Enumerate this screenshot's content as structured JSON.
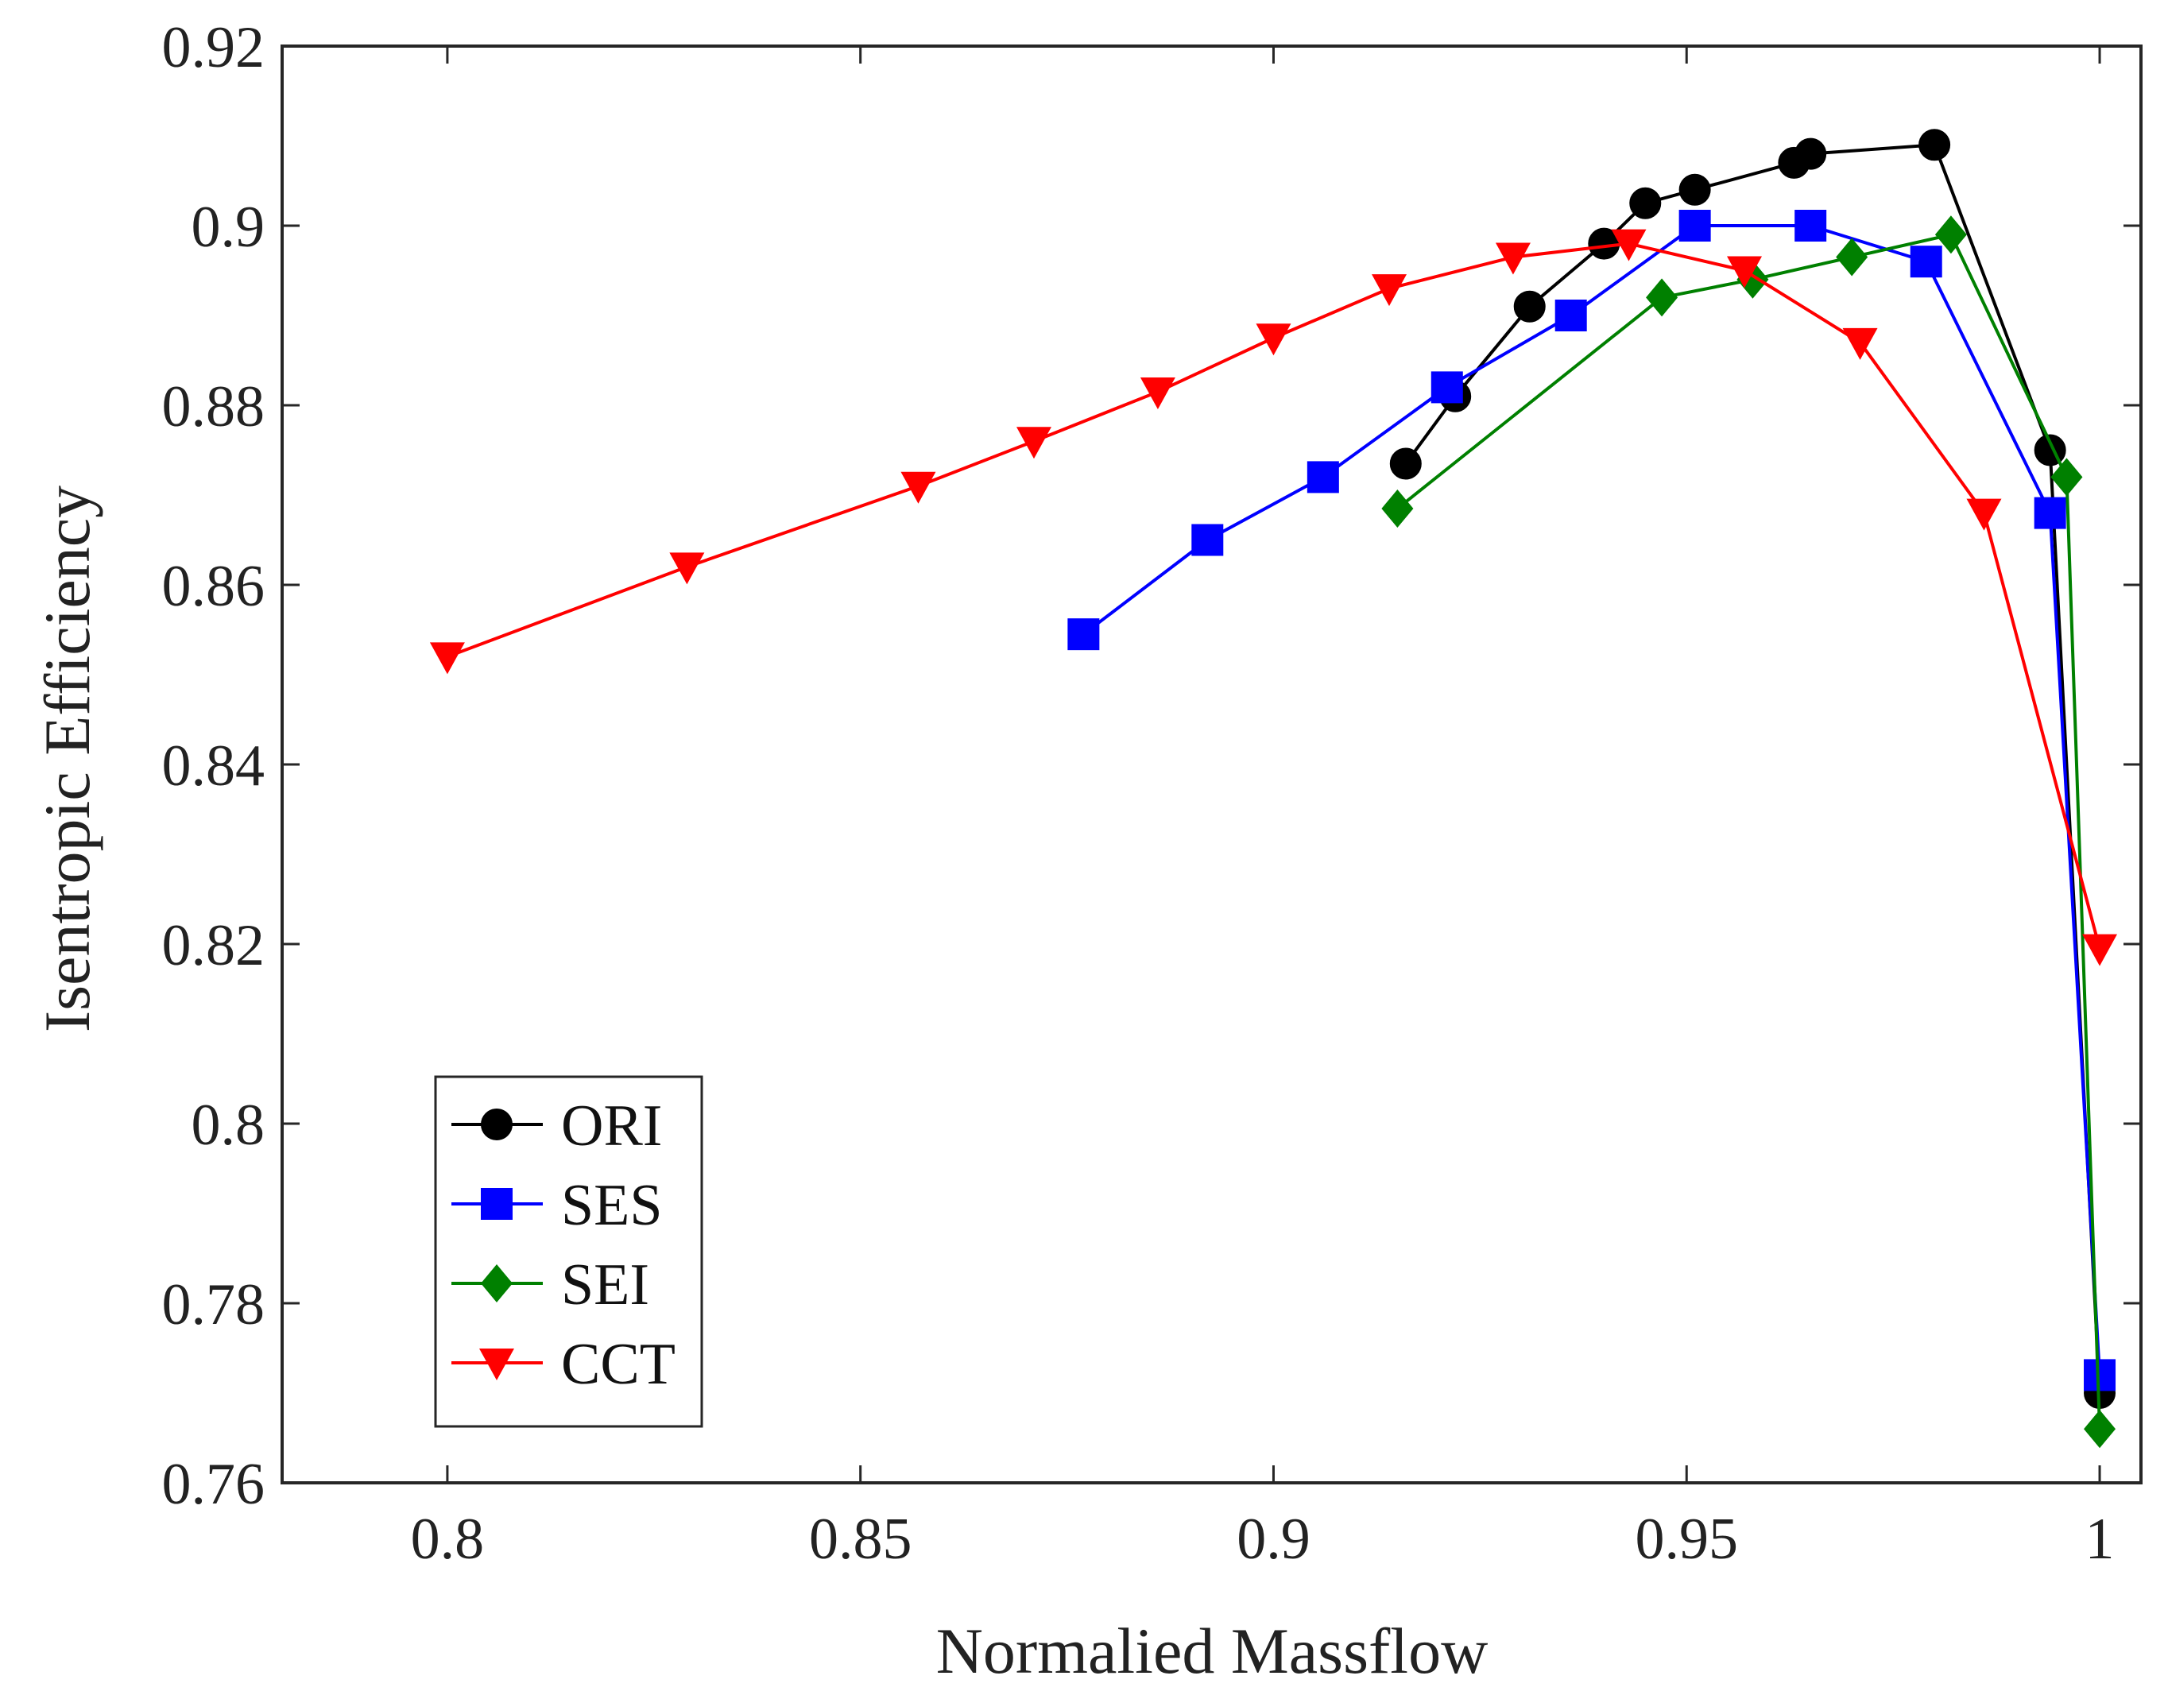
{
  "chart_data": {
    "type": "line",
    "title": "",
    "xlabel": "Normalied Massflow",
    "ylabel": "Isentropic Efficiency",
    "xlim": [
      0.78,
      1.005
    ],
    "ylim": [
      0.76,
      0.92
    ],
    "xticks": [
      0.8,
      0.85,
      0.9,
      0.95,
      1.0
    ],
    "xtick_labels": [
      "0.8",
      "0.85",
      "0.9",
      "0.95",
      "1"
    ],
    "yticks": [
      0.76,
      0.78,
      0.8,
      0.82,
      0.84,
      0.86,
      0.88,
      0.9,
      0.92
    ],
    "ytick_labels": [
      "0.76",
      "0.78",
      "0.8",
      "0.82",
      "0.84",
      "0.86",
      "0.88",
      "0.9",
      "0.92"
    ],
    "grid": false,
    "legend_position": "bottom-left",
    "series": [
      {
        "name": "ORI",
        "color": "#000000",
        "marker": "circle",
        "x": [
          0.916,
          0.922,
          0.931,
          0.94,
          0.945,
          0.951,
          0.963,
          0.965,
          0.98,
          0.994,
          1.0
        ],
        "y": [
          0.8735,
          0.881,
          0.891,
          0.898,
          0.9025,
          0.904,
          0.907,
          0.908,
          0.909,
          0.875,
          0.77
        ]
      },
      {
        "name": "SES",
        "color": "#0000ff",
        "marker": "square",
        "x": [
          0.877,
          0.892,
          0.906,
          0.921,
          0.936,
          0.951,
          0.965,
          0.979,
          0.994,
          1.0
        ],
        "y": [
          0.8545,
          0.865,
          0.872,
          0.882,
          0.89,
          0.9,
          0.9,
          0.896,
          0.868,
          0.772
        ]
      },
      {
        "name": "SEI",
        "color": "#008000",
        "marker": "diamond",
        "x": [
          0.915,
          0.947,
          0.958,
          0.97,
          0.982,
          0.996,
          1.0
        ],
        "y": [
          0.8685,
          0.892,
          0.894,
          0.8965,
          0.899,
          0.872,
          0.766
        ]
      },
      {
        "name": "CCT",
        "color": "#ff0000",
        "marker": "triangle-down",
        "x": [
          0.8,
          0.829,
          0.857,
          0.871,
          0.886,
          0.9,
          0.914,
          0.929,
          0.943,
          0.957,
          0.971,
          0.986,
          1.0
        ],
        "y": [
          0.852,
          0.862,
          0.871,
          0.876,
          0.8815,
          0.8875,
          0.893,
          0.8965,
          0.898,
          0.895,
          0.887,
          0.868,
          0.8195
        ]
      }
    ]
  }
}
